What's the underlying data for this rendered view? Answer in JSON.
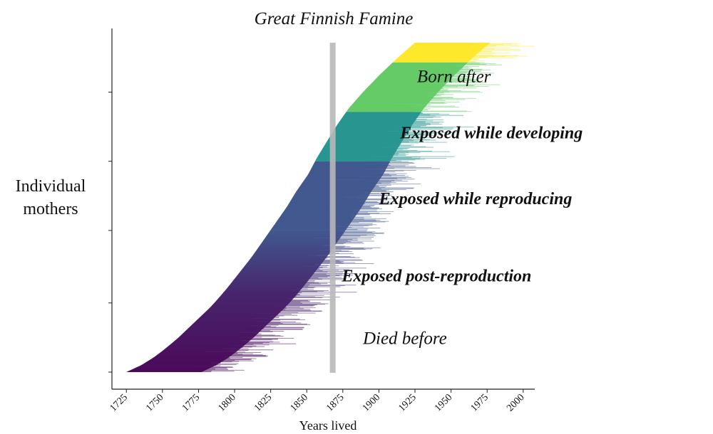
{
  "chart_data": {
    "type": "area",
    "title": "Great Finnish Famine",
    "xlabel": "Years lived",
    "ylabel_lines": [
      "Individual",
      "mothers"
    ],
    "xlim": [
      1715,
      2008
    ],
    "x_ticks": [
      1725,
      1750,
      1775,
      1800,
      1825,
      1850,
      1875,
      1900,
      1925,
      1950,
      1975,
      2000
    ],
    "famine_year": 1868,
    "grid": false,
    "legend": "none",
    "y_ticks_fraction": [
      0,
      0.21,
      0.43,
      0.64,
      0.85
    ],
    "birth_curve": {
      "fraction": [
        0,
        0.02,
        0.05,
        0.1,
        0.15,
        0.2,
        0.25,
        0.3,
        0.35,
        0.4,
        0.45,
        0.5,
        0.55,
        0.6,
        0.65,
        0.7,
        0.75,
        0.8,
        0.85,
        0.9,
        0.95,
        1.0
      ],
      "year": [
        1725,
        1735,
        1746,
        1760,
        1772,
        1784,
        1794,
        1803,
        1812,
        1820,
        1828,
        1836,
        1843,
        1851,
        1857,
        1864,
        1871,
        1879,
        1889,
        1900,
        1912,
        1925
      ]
    },
    "lifespan": {
      "mean": 62,
      "spread": 22,
      "min": 20,
      "max": 98
    },
    "series": [
      {
        "name": "Died before",
        "from_fraction": 0.0,
        "to_fraction": 0.43,
        "color": "#440154",
        "color_top": "#3b528b",
        "label_style": "italic",
        "label_pos": [
          1918,
          0.085
        ]
      },
      {
        "name": "Exposed post-reproduction",
        "from_fraction": 0.43,
        "to_fraction": 0.64,
        "color": "#3b528b",
        "label_style": "bold-italic",
        "label_pos": [
          1940,
          0.275
        ]
      },
      {
        "name": "Exposed while reproducing",
        "from_fraction": 0.64,
        "to_fraction": 0.79,
        "color": "#21918c",
        "label_style": "bold-italic",
        "label_pos": [
          1967,
          0.51
        ]
      },
      {
        "name": "Exposed while developing",
        "from_fraction": 0.79,
        "to_fraction": 0.94,
        "color": "#5ec962",
        "label_style": "bold-italic",
        "label_pos": [
          1978,
          0.71
        ]
      },
      {
        "name": "Born after",
        "from_fraction": 0.94,
        "to_fraction": 1.0,
        "color": "#fde725",
        "label_style": "italic",
        "label_pos": [
          1952,
          0.88
        ]
      }
    ]
  }
}
